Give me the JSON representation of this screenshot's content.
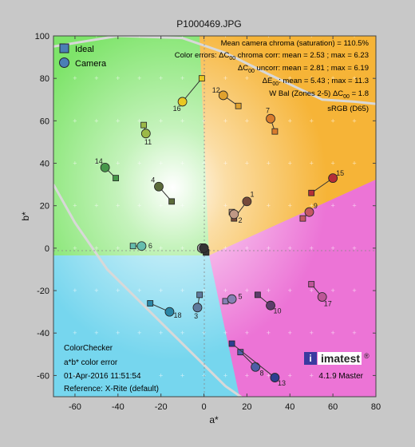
{
  "chart_data": {
    "type": "scatter",
    "title": "P1000469.JPG",
    "xlabel": "a*",
    "ylabel": "b*",
    "xlim": [
      -70,
      80
    ],
    "ylim": [
      -70,
      100
    ],
    "xticks": [
      -60,
      -40,
      -20,
      0,
      20,
      40,
      60,
      80
    ],
    "yticks": [
      -60,
      -40,
      -20,
      0,
      20,
      40,
      60,
      80,
      100
    ],
    "grid": "dots",
    "legend": {
      "position": "top-left",
      "entries": [
        {
          "name": "Ideal",
          "marker": "square"
        },
        {
          "name": "Camera",
          "marker": "circle"
        }
      ]
    },
    "stats": [
      "Mean camera chroma (saturation) = 110.5%",
      "Color errors:  ΔC",
      "00",
      " chroma corr: mean = 2.53 ;  max = 6.23",
      "ΔC",
      "00",
      " uncorr: mean = 2.81 ;  max = 6.19",
      "ΔE",
      "00",
      ": mean = 5.43 ;  max = 11.3",
      "W Bal (Zones 2-5)   ΔC",
      "00",
      " = 1.8",
      "sRGB (D65)"
    ],
    "notes": [
      "ColorChecker",
      "a*b* color error",
      "01-Apr-2016 11:51:54",
      "Reference: X-Rite (default)"
    ],
    "branding": {
      "name": "imatest",
      "reg": "®",
      "version": "4.1.9 Master"
    },
    "patches": [
      {
        "id": "1",
        "ideal": [
          14,
          14
        ],
        "camera": [
          20,
          22
        ],
        "color": "#764b3b"
      },
      {
        "id": "2",
        "ideal": [
          13,
          17
        ],
        "camera": [
          14,
          16
        ],
        "color": "#c09985"
      },
      {
        "id": "3",
        "ideal": [
          -2,
          -22
        ],
        "camera": [
          -3,
          -28
        ],
        "color": "#5f7a9d"
      },
      {
        "id": "4",
        "ideal": [
          -15,
          22
        ],
        "camera": [
          -21,
          29
        ],
        "color": "#5b6b3a"
      },
      {
        "id": "5",
        "ideal": [
          10,
          -25
        ],
        "camera": [
          13,
          -24
        ],
        "color": "#8580b3"
      },
      {
        "id": "6",
        "ideal": [
          -33,
          1
        ],
        "camera": [
          -29,
          1
        ],
        "color": "#65bdad"
      },
      {
        "id": "7",
        "ideal": [
          33,
          55
        ],
        "camera": [
          31,
          61
        ],
        "color": "#d87c2e"
      },
      {
        "id": "8",
        "ideal": [
          17,
          -49
        ],
        "camera": [
          24,
          -56
        ],
        "color": "#4d5ea7"
      },
      {
        "id": "9",
        "ideal": [
          46,
          14
        ],
        "camera": [
          49,
          17
        ],
        "color": "#c45762"
      },
      {
        "id": "10",
        "ideal": [
          25,
          -22
        ],
        "camera": [
          31,
          -27
        ],
        "color": "#5c3c6a"
      },
      {
        "id": "11",
        "ideal": [
          -28,
          58
        ],
        "camera": [
          -27,
          54
        ],
        "color": "#9cb948"
      },
      {
        "id": "12",
        "ideal": [
          16,
          67
        ],
        "camera": [
          9,
          72
        ],
        "color": "#e0a12e"
      },
      {
        "id": "13",
        "ideal": [
          13,
          -45
        ],
        "camera": [
          33,
          -61
        ],
        "color": "#2d3e90"
      },
      {
        "id": "14",
        "ideal": [
          -41,
          33
        ],
        "camera": [
          -46,
          38
        ],
        "color": "#47984b"
      },
      {
        "id": "15",
        "ideal": [
          50,
          26
        ],
        "camera": [
          60,
          33
        ],
        "color": "#b32e37"
      },
      {
        "id": "16",
        "ideal": [
          -1,
          80
        ],
        "camera": [
          -10,
          69
        ],
        "color": "#e8c823"
      },
      {
        "id": "17",
        "ideal": [
          50,
          -17
        ],
        "camera": [
          55,
          -23
        ],
        "color": "#bd5697"
      },
      {
        "id": "18",
        "ideal": [
          -25,
          -26
        ],
        "camera": [
          -16,
          -30
        ],
        "color": "#2b86a6"
      },
      {
        "id": "",
        "ideal": [
          0,
          0
        ],
        "camera": [
          -1,
          0
        ],
        "color": "#f2f2f2"
      },
      {
        "id": "",
        "ideal": [
          0,
          -1
        ],
        "camera": [
          -1,
          0
        ],
        "color": "#c8c8c8"
      },
      {
        "id": "",
        "ideal": [
          0,
          -1
        ],
        "camera": [
          -1,
          0
        ],
        "color": "#a0a0a0"
      },
      {
        "id": "",
        "ideal": [
          1,
          -2
        ],
        "camera": [
          0,
          0
        ],
        "color": "#7a7a7a"
      },
      {
        "id": "",
        "ideal": [
          1,
          -2
        ],
        "camera": [
          0,
          0
        ],
        "color": "#555555"
      },
      {
        "id": "",
        "ideal": [
          1,
          -2
        ],
        "camera": [
          0,
          0
        ],
        "color": "#343434"
      }
    ],
    "gamut_boundary": [
      [
        -70,
        30
      ],
      [
        -60,
        12
      ],
      [
        -45,
        -10
      ],
      [
        -35,
        -20
      ],
      [
        -20,
        -35
      ],
      [
        -5,
        -50
      ],
      [
        10,
        -65
      ],
      [
        20,
        -72
      ]
    ],
    "gamut_boundary_top": [
      [
        -70,
        95
      ],
      [
        -40,
        100
      ],
      [
        -10,
        99
      ],
      [
        10,
        92
      ],
      [
        30,
        82
      ],
      [
        55,
        70
      ],
      [
        70,
        69
      ],
      [
        80,
        68
      ]
    ]
  }
}
